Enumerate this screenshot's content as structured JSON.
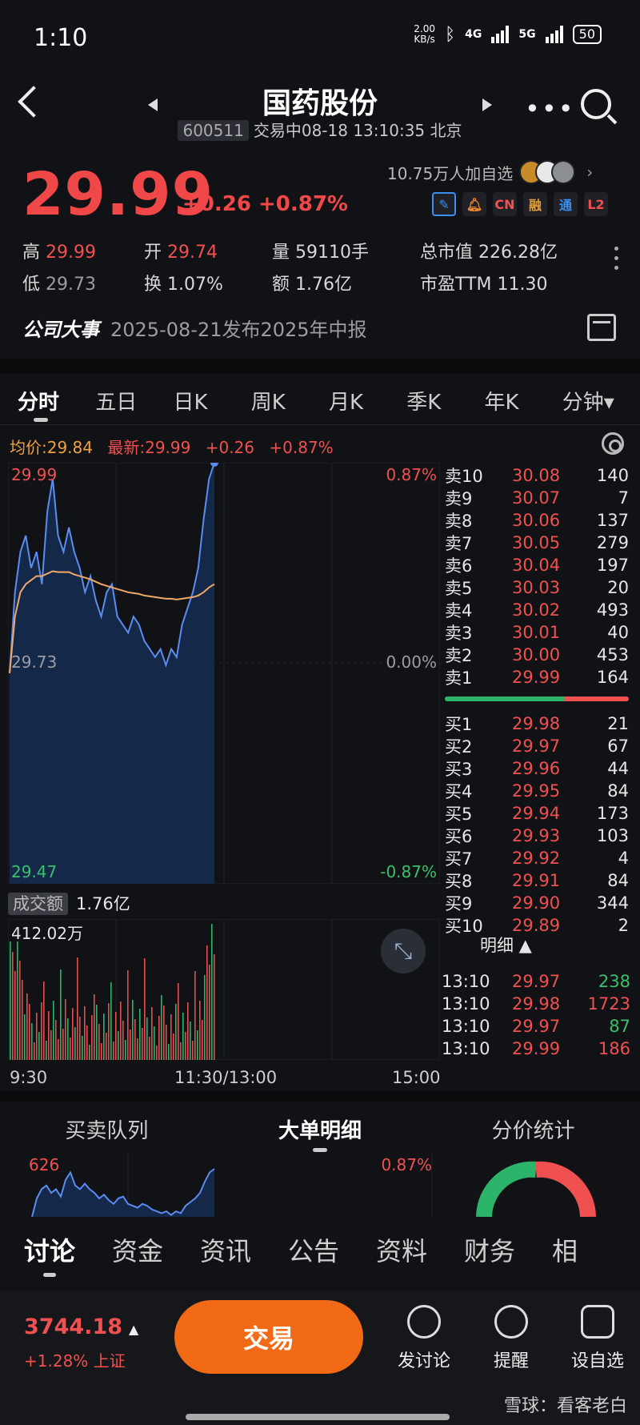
{
  "status": {
    "time": "1:10",
    "net_speed": "2.00\nKB/s",
    "net1": "4G",
    "net2": "5G",
    "battery": "50"
  },
  "header": {
    "title": "国药股份",
    "code": "600511",
    "status": "交易中08-18 13:10:35 北京"
  },
  "quote": {
    "price": "29.99",
    "change": "+0.26 +0.87%",
    "followers": "10.75万人加自选",
    "badges": [
      "CN",
      "融",
      "通",
      "L2"
    ],
    "high_label": "高",
    "high": "29.99",
    "open_label": "开",
    "open": "29.74",
    "vol_label": "量",
    "vol": "59110手",
    "mcap_label": "总市值",
    "mcap": "226.28亿",
    "low_label": "低",
    "low": "29.73",
    "turn_label": "换",
    "turn": "1.07%",
    "amt_label": "额",
    "amt": "1.76亿",
    "pe_label": "市盈TTM",
    "pe": "11.30"
  },
  "event": {
    "label": "公司大事",
    "text": "2025-08-21发布2025年中报"
  },
  "period_tabs": [
    "分时",
    "五日",
    "日K",
    "周K",
    "月K",
    "季K",
    "年K",
    "分钟▾"
  ],
  "chart_info": {
    "avg": "均价:29.84",
    "last": "最新:29.99",
    "chg": "+0.26",
    "pct": "+0.87%"
  },
  "chart_data": {
    "type": "line",
    "y_left": [
      "29.99",
      "29.73",
      "29.47"
    ],
    "y_right": [
      "0.87%",
      "0.00%",
      "-0.87%"
    ],
    "x_labels": [
      "9:30",
      "11:30/13:00",
      "15:00"
    ],
    "ylim": [
      29.47,
      29.99
    ],
    "price": [
      29.73,
      29.83,
      29.88,
      29.9,
      29.86,
      29.88,
      29.84,
      29.93,
      29.97,
      29.9,
      29.88,
      29.91,
      29.88,
      29.86,
      29.83,
      29.85,
      29.82,
      29.8,
      29.83,
      29.84,
      29.8,
      29.79,
      29.78,
      29.8,
      29.79,
      29.77,
      29.76,
      29.75,
      29.76,
      29.74,
      29.76,
      29.75,
      29.79,
      29.81,
      29.83,
      29.86,
      29.92,
      29.97,
      29.99
    ],
    "avg": [
      29.73,
      29.8,
      29.83,
      29.84,
      29.845,
      29.85,
      29.85,
      29.853,
      29.856,
      29.855,
      29.855,
      29.855,
      29.852,
      29.85,
      29.848,
      29.846,
      29.843,
      29.84,
      29.838,
      29.836,
      29.834,
      29.832,
      29.83,
      29.829,
      29.828,
      29.826,
      29.825,
      29.824,
      29.823,
      29.822,
      29.822,
      29.821,
      29.822,
      29.823,
      29.824,
      29.826,
      29.83,
      29.836,
      29.84
    ],
    "turnover_label": "成交额",
    "turnover": "1.76亿",
    "vol_max": "412.02万"
  },
  "order_book": {
    "asks": [
      {
        "label": "卖10",
        "price": "30.08",
        "vol": "140"
      },
      {
        "label": "卖9",
        "price": "30.07",
        "vol": "7"
      },
      {
        "label": "卖8",
        "price": "30.06",
        "vol": "137"
      },
      {
        "label": "卖7",
        "price": "30.05",
        "vol": "279"
      },
      {
        "label": "卖6",
        "price": "30.04",
        "vol": "197"
      },
      {
        "label": "卖5",
        "price": "30.03",
        "vol": "20"
      },
      {
        "label": "卖4",
        "price": "30.02",
        "vol": "493"
      },
      {
        "label": "卖3",
        "price": "30.01",
        "vol": "40"
      },
      {
        "label": "卖2",
        "price": "30.00",
        "vol": "453"
      },
      {
        "label": "卖1",
        "price": "29.99",
        "vol": "164"
      }
    ],
    "bids": [
      {
        "label": "买1",
        "price": "29.98",
        "vol": "21"
      },
      {
        "label": "买2",
        "price": "29.97",
        "vol": "67"
      },
      {
        "label": "买3",
        "price": "29.96",
        "vol": "44"
      },
      {
        "label": "买4",
        "price": "29.95",
        "vol": "84"
      },
      {
        "label": "买5",
        "price": "29.94",
        "vol": "173"
      },
      {
        "label": "买6",
        "price": "29.93",
        "vol": "103"
      },
      {
        "label": "买7",
        "price": "29.92",
        "vol": "4"
      },
      {
        "label": "买8",
        "price": "29.91",
        "vol": "84"
      },
      {
        "label": "买9",
        "price": "29.90",
        "vol": "344"
      },
      {
        "label": "买10",
        "price": "29.89",
        "vol": "2"
      }
    ],
    "detail_label": "明细 ▲",
    "ticks": [
      {
        "time": "13:10",
        "price": "29.97",
        "vol": "238",
        "color": "#38c06a"
      },
      {
        "time": "13:10",
        "price": "29.98",
        "vol": "1723",
        "color": "#f05050"
      },
      {
        "time": "13:10",
        "price": "29.97",
        "vol": "87",
        "color": "#38c06a"
      },
      {
        "time": "13:10",
        "price": "29.99",
        "vol": "186",
        "color": "#f05050"
      }
    ]
  },
  "section_tabs": [
    "买卖队列",
    "大单明细",
    "分价统计"
  ],
  "mini": {
    "left": "626",
    "right": "0.87%"
  },
  "content_tabs": [
    "讨论",
    "资金",
    "资讯",
    "公告",
    "资料",
    "财务",
    "相"
  ],
  "footer": {
    "index_value": "3744.18",
    "index_arrow": "▲",
    "index_change": "+1.28% 上证",
    "trade": "交易",
    "discuss": "发讨论",
    "remind": "提醒",
    "watch": "设自选",
    "watermark": "雪球：看客老白"
  }
}
